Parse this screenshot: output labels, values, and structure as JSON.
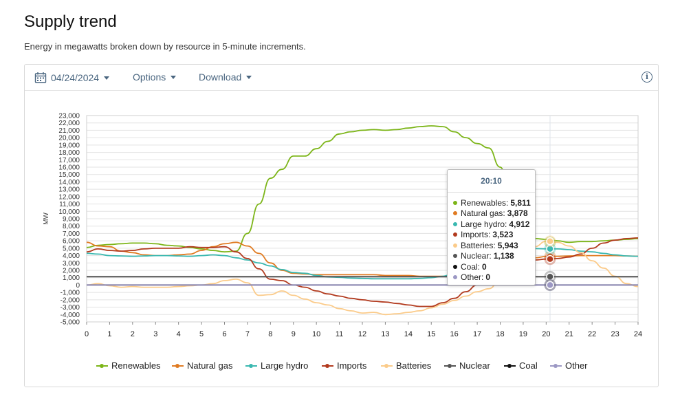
{
  "page": {
    "title": "Supply trend",
    "subtitle": "Energy in megawatts broken down by resource in 5-minute increments."
  },
  "toolbar": {
    "date": "04/24/2024",
    "options_label": "Options",
    "download_label": "Download",
    "info_glyph": "i",
    "icons": [
      "calendar-icon",
      "chevron-down-icon",
      "info-icon"
    ]
  },
  "chart_data": {
    "type": "line",
    "ylabel": "MW",
    "xlim": [
      0,
      24
    ],
    "ylim": [
      -5000,
      23000
    ],
    "x_ticks": [
      "0",
      "1",
      "2",
      "3",
      "4",
      "5",
      "6",
      "7",
      "8",
      "9",
      "10",
      "11",
      "12",
      "13",
      "14",
      "15",
      "16",
      "17",
      "18",
      "19",
      "20",
      "21",
      "22",
      "23",
      "24"
    ],
    "y_ticks": [
      "23,000",
      "22,000",
      "21,000",
      "20,000",
      "19,000",
      "18,000",
      "17,000",
      "16,000",
      "15,000",
      "14,000",
      "13,000",
      "12,000",
      "11,000",
      "10,000",
      "9,000",
      "8,000",
      "7,000",
      "6,000",
      "5,000",
      "4,000",
      "3,000",
      "2,000",
      "1,000",
      "0",
      "-1,000",
      "-2,000",
      "-3,000",
      "-4,000",
      "-5,000"
    ],
    "grid": true,
    "legend_position": "bottom",
    "x_hours": [
      0,
      0.5,
      1,
      1.5,
      2,
      2.5,
      3,
      3.5,
      4,
      4.5,
      5,
      5.5,
      6,
      6.5,
      7,
      7.5,
      8,
      8.5,
      9,
      9.5,
      10,
      10.5,
      11,
      11.5,
      12,
      12.5,
      13,
      13.5,
      14,
      14.5,
      15,
      15.5,
      16,
      16.5,
      17,
      17.5,
      18,
      18.5,
      19,
      19.5,
      20,
      20.5,
      21,
      21.5,
      22,
      22.5,
      23,
      23.5,
      24
    ],
    "series": [
      {
        "name": "Renewables",
        "color": "#7cb518",
        "values": [
          5100,
          5400,
          5500,
          5600,
          5700,
          5700,
          5600,
          5400,
          5300,
          5100,
          4900,
          4700,
          4500,
          4600,
          7000,
          11000,
          14500,
          15700,
          17500,
          17500,
          18500,
          19500,
          20500,
          20800,
          21000,
          21100,
          21000,
          21100,
          21300,
          21500,
          21600,
          21500,
          20800,
          20000,
          19200,
          18600,
          16000,
          11000,
          7500,
          6300,
          6200,
          6000,
          5800,
          5900,
          5900,
          6000,
          6100,
          6200,
          6300
        ]
      },
      {
        "name": "Natural gas",
        "color": "#e07b22",
        "values": [
          5800,
          5300,
          5200,
          4600,
          4400,
          4100,
          4000,
          4000,
          4100,
          4200,
          4700,
          5200,
          5600,
          5800,
          5300,
          4300,
          3000,
          2000,
          1600,
          1500,
          1400,
          1400,
          1400,
          1400,
          1400,
          1400,
          1300,
          1300,
          1300,
          1200,
          1200,
          1200,
          1200,
          1200,
          1300,
          1300,
          1600,
          2500,
          3300,
          3700,
          3880,
          3900,
          3950,
          4000,
          4000,
          4000,
          4000,
          3950,
          3900
        ]
      },
      {
        "name": "Large hydro",
        "color": "#3ab8b0",
        "values": [
          4300,
          4200,
          4000,
          3950,
          3900,
          3950,
          4000,
          4000,
          3950,
          3900,
          4000,
          4100,
          4000,
          3700,
          3400,
          3000,
          2600,
          2100,
          1700,
          1600,
          1300,
          1100,
          1050,
          950,
          900,
          850,
          850,
          850,
          850,
          900,
          1000,
          1200,
          1600,
          2100,
          2700,
          3300,
          4100,
          4700,
          4900,
          4950,
          4912,
          4900,
          4800,
          4600,
          4500,
          4300,
          4100,
          3950,
          3900
        ]
      },
      {
        "name": "Imports",
        "color": "#b23a1e",
        "values": [
          4500,
          4900,
          4700,
          4600,
          4700,
          4900,
          5000,
          5000,
          5000,
          5200,
          5100,
          5100,
          5200,
          4500,
          3600,
          2200,
          800,
          600,
          0,
          -300,
          -800,
          -1200,
          -1500,
          -1800,
          -2000,
          -2200,
          -2300,
          -2500,
          -2700,
          -2900,
          -2900,
          -2400,
          -1800,
          -900,
          0,
          300,
          1000,
          2200,
          3100,
          3400,
          3523,
          3600,
          3800,
          4200,
          5000,
          5700,
          6100,
          6300,
          6400
        ]
      },
      {
        "name": "Batteries",
        "color": "#fbcb8a",
        "values": [
          0,
          200,
          -100,
          -300,
          -200,
          -300,
          -300,
          -300,
          -200,
          -100,
          0,
          200,
          600,
          800,
          300,
          -1400,
          -1300,
          -800,
          -1400,
          -1900,
          -2400,
          -2700,
          -3200,
          -3500,
          -3800,
          -3700,
          -4000,
          -3900,
          -3700,
          -3500,
          -3100,
          -2600,
          -2100,
          -1500,
          -900,
          -500,
          600,
          1800,
          3400,
          5200,
          5943,
          5800,
          5300,
          4400,
          3300,
          2300,
          1200,
          200,
          -200
        ]
      },
      {
        "name": "Nuclear",
        "color": "#555555",
        "values": [
          1138,
          1138,
          1138,
          1138,
          1138,
          1138,
          1138,
          1138,
          1138,
          1138,
          1138,
          1138,
          1138,
          1138,
          1138,
          1138,
          1138,
          1138,
          1138,
          1138,
          1138,
          1138,
          1138,
          1138,
          1138,
          1138,
          1138,
          1138,
          1138,
          1138,
          1138,
          1138,
          1138,
          1138,
          1138,
          1138,
          1138,
          1138,
          1138,
          1138,
          1138,
          1138,
          1138,
          1138,
          1138,
          1138,
          1138,
          1138,
          1138
        ]
      },
      {
        "name": "Coal",
        "color": "#111111",
        "values": [
          0,
          0,
          0,
          0,
          0,
          0,
          0,
          0,
          0,
          0,
          0,
          0,
          0,
          0,
          0,
          0,
          0,
          0,
          0,
          0,
          0,
          0,
          0,
          0,
          0,
          0,
          0,
          0,
          0,
          0,
          0,
          0,
          0,
          0,
          0,
          0,
          0,
          0,
          0,
          0,
          0,
          0,
          0,
          0,
          0,
          0,
          0,
          0,
          0
        ]
      },
      {
        "name": "Other",
        "color": "#9c98c4",
        "values": [
          0,
          0,
          0,
          0,
          0,
          0,
          0,
          0,
          0,
          0,
          0,
          0,
          0,
          0,
          0,
          0,
          0,
          0,
          0,
          0,
          0,
          0,
          0,
          0,
          0,
          0,
          0,
          0,
          0,
          0,
          0,
          0,
          0,
          0,
          0,
          0,
          0,
          0,
          0,
          0,
          0,
          0,
          0,
          0,
          0,
          0,
          0,
          0,
          0
        ]
      }
    ],
    "tooltip": {
      "time": "20:10",
      "x_hour": 20.17,
      "rows": [
        {
          "label": "Renewables:",
          "value": "5,811",
          "color": "#7cb518",
          "y": 5811
        },
        {
          "label": "Natural gas:",
          "value": "3,878",
          "color": "#e07b22",
          "y": 3878
        },
        {
          "label": "Large hydro:",
          "value": "4,912",
          "color": "#3ab8b0",
          "y": 4912
        },
        {
          "label": "Imports:",
          "value": "3,523",
          "color": "#b23a1e",
          "y": 3523
        },
        {
          "label": "Batteries:",
          "value": "5,943",
          "color": "#fbcb8a",
          "y": 5943
        },
        {
          "label": "Nuclear:",
          "value": "1,138",
          "color": "#555555",
          "y": 1138
        },
        {
          "label": "Coal:",
          "value": "0",
          "color": "#111111",
          "y": 0
        },
        {
          "label": "Other:",
          "value": "0",
          "color": "#9c98c4",
          "y": 0
        }
      ]
    }
  }
}
